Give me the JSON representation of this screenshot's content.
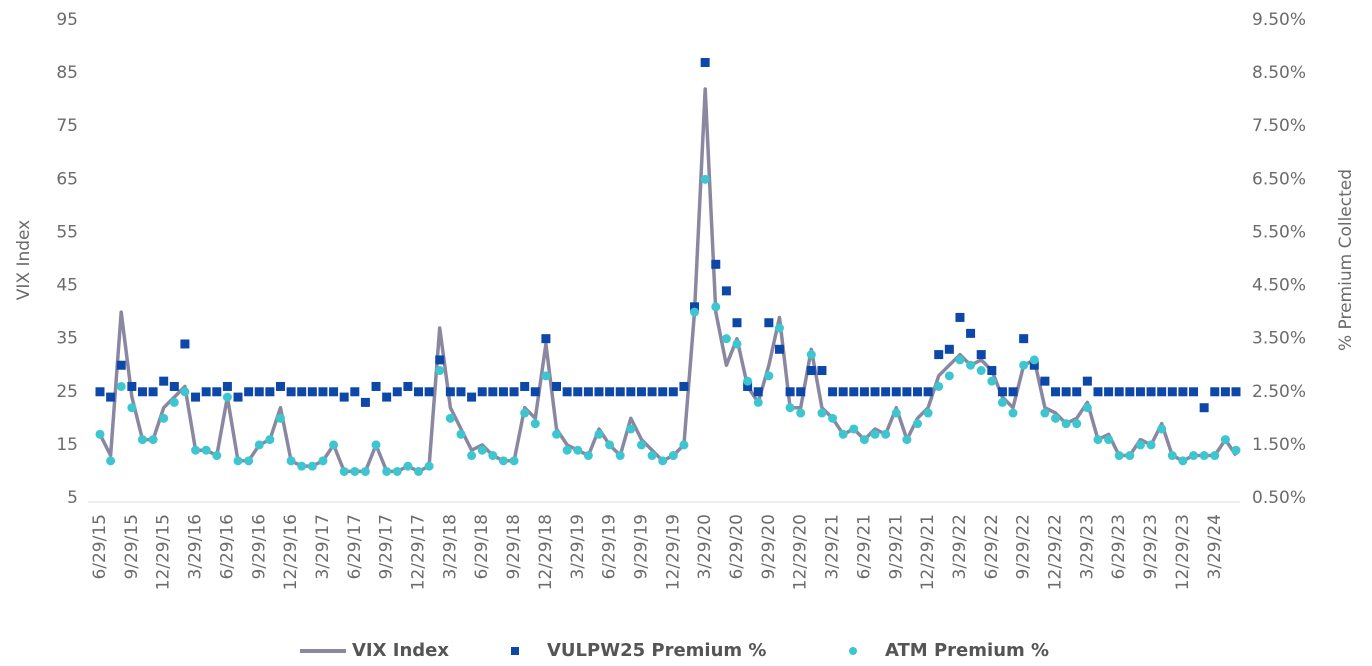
{
  "chart_data": {
    "type": "line",
    "ylabel": "VIX Index",
    "y2label": "% Premium Collected",
    "categories": [
      "6/29/15",
      null,
      null,
      "9/29/15",
      null,
      null,
      "12/29/15",
      null,
      null,
      "3/29/16",
      null,
      null,
      "6/29/16",
      null,
      null,
      "9/29/16",
      null,
      null,
      "12/29/16",
      null,
      null,
      "3/29/17",
      null,
      null,
      "6/29/17",
      null,
      null,
      "9/29/17",
      null,
      null,
      "12/29/17",
      null,
      null,
      "3/29/18",
      null,
      null,
      "6/29/18",
      null,
      null,
      "9/29/18",
      null,
      null,
      "12/29/18",
      null,
      null,
      "3/29/19",
      null,
      null,
      "6/29/19",
      null,
      null,
      "9/29/19",
      null,
      null,
      "12/29/19",
      null,
      null,
      "3/29/20",
      null,
      null,
      "6/29/20",
      null,
      null,
      "9/29/20",
      null,
      null,
      "12/29/20",
      null,
      null,
      "3/29/21",
      null,
      null,
      "6/29/21",
      null,
      null,
      "9/29/21",
      null,
      null,
      "12/29/21",
      null,
      null,
      "3/29/22",
      null,
      null,
      "6/29/22",
      null,
      null,
      "9/29/22",
      null,
      null,
      "12/29/22",
      null,
      null,
      "3/29/23",
      null,
      null,
      "6/29/23",
      null,
      null,
      "9/29/23",
      null,
      null,
      "12/29/23",
      null,
      null,
      "3/29/24",
      null,
      null
    ],
    "series": [
      {
        "name": "VIX Index",
        "style": "line",
        "color": "#8a87a0",
        "values": [
          17,
          13,
          40,
          24,
          16,
          16,
          22,
          24,
          26,
          14,
          14,
          13,
          24,
          12,
          12,
          15,
          16,
          22,
          12,
          11,
          11,
          12,
          15,
          10,
          10,
          10,
          15,
          10,
          10,
          11,
          10,
          11,
          37,
          22,
          18,
          14,
          15,
          13,
          12,
          12,
          22,
          20,
          34,
          18,
          15,
          14,
          13,
          18,
          15,
          13,
          20,
          16,
          14,
          12,
          13,
          15,
          40,
          82,
          40,
          30,
          35,
          26,
          23,
          30,
          39,
          22,
          22,
          33,
          22,
          20,
          17,
          18,
          16,
          18,
          17,
          22,
          16,
          20,
          22,
          28,
          30,
          32,
          30,
          31,
          29,
          24,
          22,
          30,
          31,
          22,
          21,
          19,
          20,
          23,
          16,
          17,
          13,
          13,
          16,
          15,
          19,
          13,
          12,
          13,
          13,
          13,
          16,
          13
        ]
      },
      {
        "name": "VULPW25 Premium %",
        "style": "square",
        "axis": "y2",
        "color": "#0d47a8",
        "values": [
          2.5,
          2.4,
          3.0,
          2.6,
          2.5,
          2.5,
          2.7,
          2.6,
          3.4,
          2.4,
          2.5,
          2.5,
          2.6,
          2.4,
          2.5,
          2.5,
          2.5,
          2.6,
          2.5,
          2.5,
          2.5,
          2.5,
          2.5,
          2.4,
          2.5,
          2.3,
          2.6,
          2.4,
          2.5,
          2.6,
          2.5,
          2.5,
          3.1,
          2.5,
          2.5,
          2.4,
          2.5,
          2.5,
          2.5,
          2.5,
          2.6,
          2.5,
          3.5,
          2.6,
          2.5,
          2.5,
          2.5,
          2.5,
          2.5,
          2.5,
          2.5,
          2.5,
          2.5,
          2.5,
          2.5,
          2.6,
          4.1,
          8.7,
          4.9,
          4.4,
          3.8,
          2.6,
          2.5,
          3.8,
          3.3,
          2.5,
          2.5,
          2.9,
          2.9,
          2.5,
          2.5,
          2.5,
          2.5,
          2.5,
          2.5,
          2.5,
          2.5,
          2.5,
          2.5,
          3.2,
          3.3,
          3.9,
          3.6,
          3.2,
          2.9,
          2.5,
          2.5,
          3.5,
          3.0,
          2.7,
          2.5,
          2.5,
          2.5,
          2.7,
          2.5,
          2.5,
          2.5,
          2.5,
          2.5,
          2.5,
          2.5,
          2.5,
          2.5,
          2.5,
          2.2,
          2.5,
          2.5,
          2.5
        ]
      },
      {
        "name": "ATM Premium %",
        "style": "dot",
        "axis": "y2",
        "color": "#3ec6d0",
        "values": [
          1.7,
          1.2,
          2.6,
          2.2,
          1.6,
          1.6,
          2.0,
          2.3,
          2.5,
          1.4,
          1.4,
          1.3,
          2.4,
          1.2,
          1.2,
          1.5,
          1.6,
          2.0,
          1.2,
          1.1,
          1.1,
          1.2,
          1.5,
          1.0,
          1.0,
          1.0,
          1.5,
          1.0,
          1.0,
          1.1,
          1.0,
          1.1,
          2.9,
          2.0,
          1.7,
          1.3,
          1.4,
          1.3,
          1.2,
          1.2,
          2.1,
          1.9,
          2.8,
          1.7,
          1.4,
          1.4,
          1.3,
          1.7,
          1.5,
          1.3,
          1.8,
          1.5,
          1.3,
          1.2,
          1.3,
          1.5,
          4.0,
          6.5,
          4.1,
          3.5,
          3.4,
          2.7,
          2.3,
          2.8,
          3.7,
          2.2,
          2.1,
          3.2,
          2.1,
          2.0,
          1.7,
          1.8,
          1.6,
          1.7,
          1.7,
          2.1,
          1.6,
          1.9,
          2.1,
          2.6,
          2.8,
          3.1,
          3.0,
          2.9,
          2.7,
          2.3,
          2.1,
          3.0,
          3.1,
          2.1,
          2.0,
          1.9,
          1.9,
          2.2,
          1.6,
          1.6,
          1.3,
          1.3,
          1.5,
          1.5,
          1.8,
          1.3,
          1.2,
          1.3,
          1.3,
          1.3,
          1.6,
          1.4
        ]
      }
    ],
    "ylim": [
      5,
      95
    ],
    "yticks": [
      5,
      15,
      25,
      35,
      45,
      55,
      65,
      75,
      85,
      95
    ],
    "y2lim": [
      0.5,
      9.5
    ],
    "y2ticks": [
      {
        "value": 0.5,
        "label": "0.50%"
      },
      {
        "value": 1.5,
        "label": "1.50%"
      },
      {
        "value": 2.5,
        "label": "2.50%"
      },
      {
        "value": 3.5,
        "label": "3.50%"
      },
      {
        "value": 4.5,
        "label": "4.50%"
      },
      {
        "value": 5.5,
        "label": "5.50%"
      },
      {
        "value": 6.5,
        "label": "6.50%"
      },
      {
        "value": 7.5,
        "label": "7.50%"
      },
      {
        "value": 8.5,
        "label": "8.50%"
      },
      {
        "value": 9.5,
        "label": "9.50%"
      }
    ],
    "legend": "bottom"
  }
}
